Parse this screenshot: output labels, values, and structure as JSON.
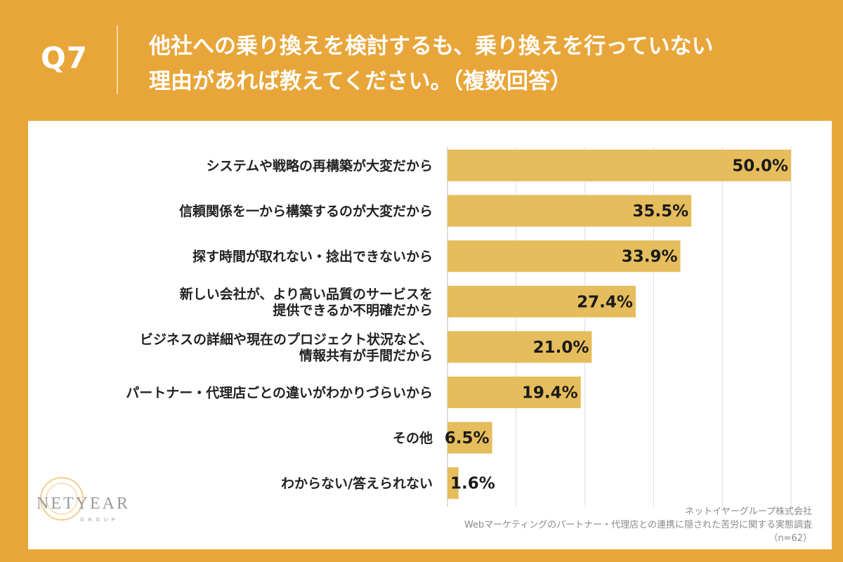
{
  "header": {
    "question": "Q7",
    "title_line1": "他社への乗り換えを検討するも、乗り換えを行っていない",
    "title_line2": "理由があれば教えてください。（複数回答）"
  },
  "chart_data": {
    "type": "bar",
    "orientation": "horizontal",
    "title": "他社への乗り換えを検討するも、乗り換えを行っていない理由があれば教えてください。（複数回答）",
    "categories": [
      [
        "システムや戦略の再構築が大変だから"
      ],
      [
        "信頼関係を一から構築するのが大変だから"
      ],
      [
        "探す時間が取れない・捻出できないから"
      ],
      [
        "新しい会社が、より高い品質のサービスを",
        "提供できるか不明確だから"
      ],
      [
        "ビジネスの詳細や現在のプロジェクト状況など、",
        "情報共有が手間だから"
      ],
      [
        "パートナー・代理店ごとの違いがわかりづらいから"
      ],
      [
        "その他"
      ],
      [
        "わからない/答えられない"
      ]
    ],
    "values": [
      50.0,
      35.5,
      33.9,
      27.4,
      21.0,
      19.4,
      6.5,
      1.6
    ],
    "value_labels": [
      "50.0%",
      "35.5%",
      "33.9%",
      "27.4%",
      "21.0%",
      "19.4%",
      "6.5%",
      "1.6%"
    ],
    "xlim": [
      0,
      50
    ],
    "grid": true,
    "bar_color": "#e6bd5c",
    "grid_color": "#dcdcdc"
  },
  "footer": {
    "company": "ネットイヤーグループ株式会社",
    "survey": "Webマーケティングのパートナー・代理店との連携に隠された苦労に関する実態調査",
    "sample": "（n=62）"
  },
  "logo": {
    "text": "NETYEAR",
    "sub": "GROUP"
  },
  "colors": {
    "background": "#e8a63a",
    "panel": "#ffffff",
    "accent": "#e6bd5c"
  }
}
